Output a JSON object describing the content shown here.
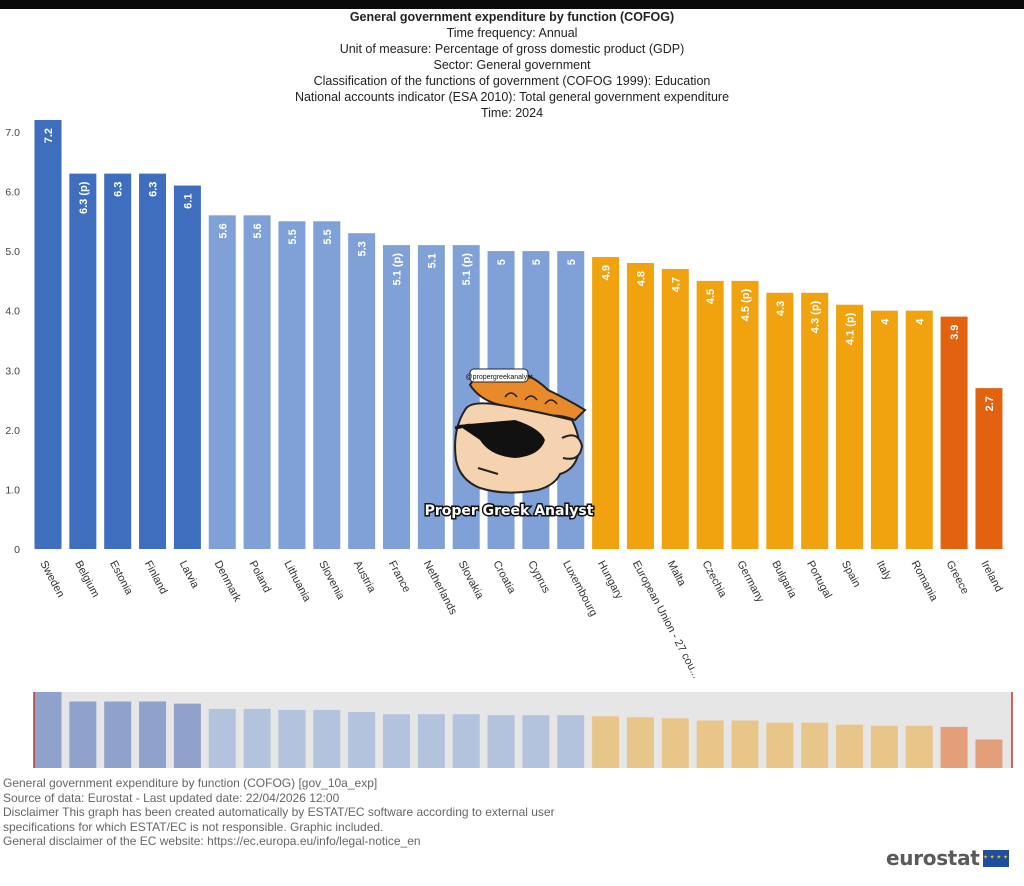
{
  "header": {
    "title": "General government expenditure by function (COFOG)",
    "lines": [
      "Time frequency:  Annual",
      "Unit of measure:  Percentage of gross domestic product (GDP)",
      "Sector:  General government",
      "Classification of the functions of government (COFOG 1999):  Education",
      "National accounts indicator (ESA 2010):  Total general government expenditure",
      "Time:  2024"
    ]
  },
  "watermark": {
    "handle": "@propergreekanalyst",
    "name": "Proper Greek Analyst"
  },
  "chart_data": {
    "type": "bar",
    "categories": [
      "Sweden",
      "Belgium",
      "Estonia",
      "Finland",
      "Latvia",
      "Denmark",
      "Poland",
      "Lithuania",
      "Slovenia",
      "Austria",
      "France",
      "Netherlands",
      "Slovakia",
      "Croatia",
      "Cyprus",
      "Luxembourg",
      "Hungary",
      "European Union - 27 cou...",
      "Malta",
      "Czechia",
      "Germany",
      "Bulgaria",
      "Portugal",
      "Spain",
      "Italy",
      "Romania",
      "Greece",
      "Ireland"
    ],
    "values": [
      7.2,
      6.3,
      6.3,
      6.3,
      6.1,
      5.6,
      5.6,
      5.5,
      5.5,
      5.3,
      5.1,
      5.1,
      5.1,
      5,
      5,
      5,
      4.9,
      4.8,
      4.7,
      4.5,
      4.5,
      4.3,
      4.3,
      4.1,
      4,
      4,
      3.9,
      2.7
    ],
    "value_labels": [
      "7.2",
      "6.3 (p)",
      "6.3",
      "6.3",
      "6.1",
      "5.6",
      "5.6",
      "5.5",
      "5.5",
      "5.3",
      "5.1 (p)",
      "5.1",
      "5.1 (p)",
      "5",
      "5",
      "5",
      "4.9",
      "4.8",
      "4.7",
      "4.5",
      "4.5 (p)",
      "4.3",
      "4.3 (p)",
      "4.1 (p)",
      "4",
      "4",
      "3.9",
      "2.7"
    ],
    "color_groups": [
      "dark",
      "dark",
      "dark",
      "dark",
      "dark",
      "light",
      "light",
      "light",
      "light",
      "light",
      "light",
      "light",
      "light",
      "light",
      "light",
      "light",
      "orange",
      "orange",
      "orange",
      "orange",
      "orange",
      "orange",
      "orange",
      "orange",
      "orange",
      "orange",
      "red",
      "red"
    ],
    "colors": {
      "dark": "#3e6ebd",
      "light": "#7fa1d7",
      "orange": "#f0a30e",
      "red": "#e2620f"
    },
    "navigator_colors": {
      "dark": "#8fa2cb",
      "light": "#b3c3de",
      "orange": "#e8c68a",
      "red": "#e39e7a"
    },
    "yticks": [
      "0",
      "1.0",
      "2.0",
      "3.0",
      "4.0",
      "5.0",
      "6.0",
      "7.0"
    ],
    "ylim": [
      0,
      7.2
    ],
    "grid": false,
    "legend": "none"
  },
  "footer": {
    "lines": [
      "General government expenditure by function (COFOG) [gov_10a_exp]",
      "Source of data: Eurostat - Last updated date: 22/04/2026 12:00",
      "Disclaimer This graph has been created automatically by ESTAT/EC software according to external user",
      "specifications for which ESTAT/EC is not responsible. Graphic included.",
      "General disclaimer of the EC website: https://ec.europa.eu/info/legal-notice_en"
    ]
  },
  "brand": {
    "text": "eurostat",
    "flag_stars": "✦ ✦ ✦ ✦"
  }
}
